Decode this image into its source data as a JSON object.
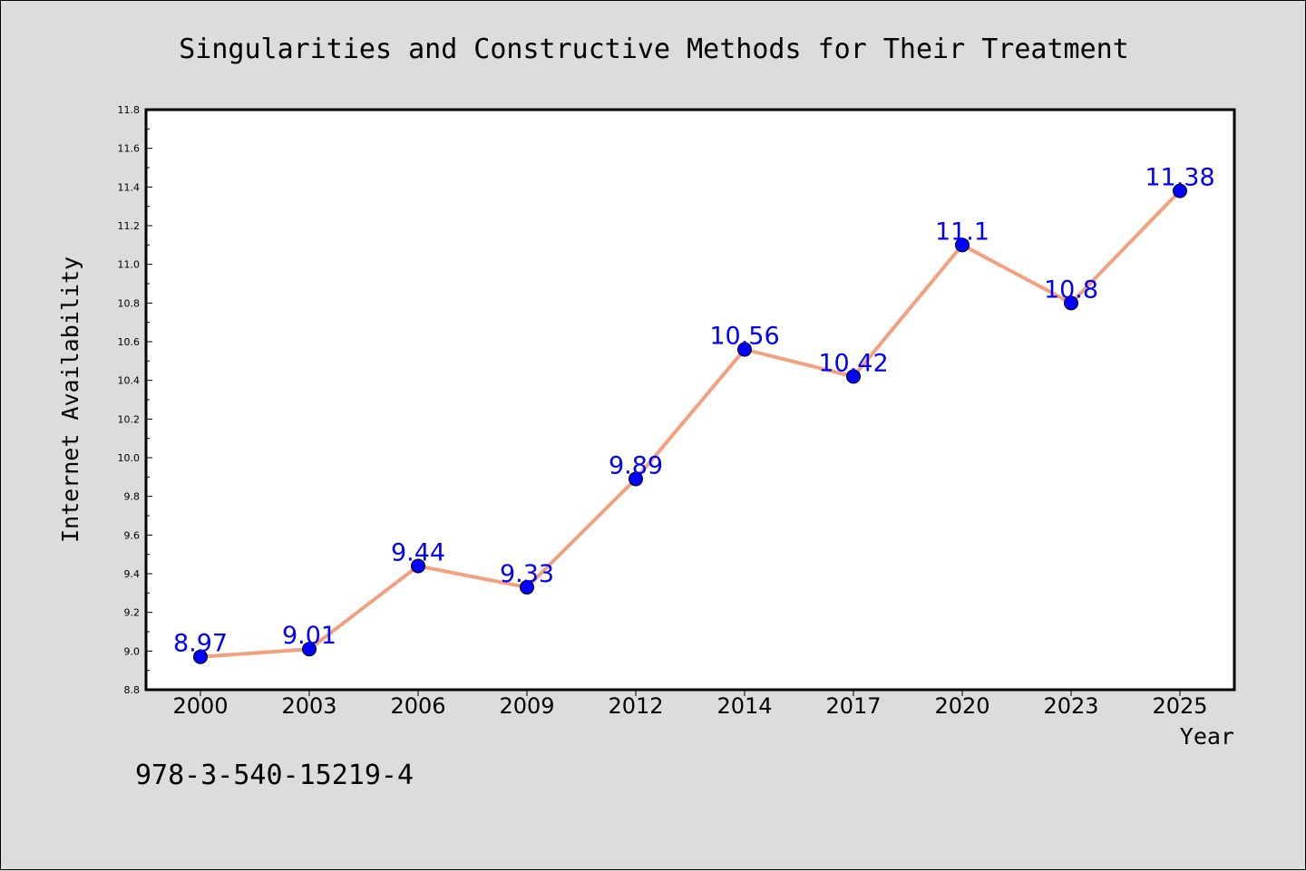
{
  "chart_data": {
    "type": "line",
    "title": "Singularities and Constructive Methods for Their Treatment",
    "xlabel": "Year",
    "ylabel": "Internet Availability",
    "categories": [
      "2000",
      "2003",
      "2006",
      "2009",
      "2012",
      "2014",
      "2017",
      "2020",
      "2023",
      "2025"
    ],
    "series": [
      {
        "values": [
          8.97,
          9.01,
          9.44,
          9.33,
          9.89,
          10.56,
          10.42,
          11.1,
          10.8,
          11.38
        ],
        "data_labels": [
          "8.97",
          "9.01",
          "9.44",
          "9.33",
          "9.89",
          "10.56",
          "10.42",
          "11.1",
          "10.8",
          "11.38"
        ]
      }
    ],
    "ylim": [
      8.8,
      11.8
    ],
    "yticks": [
      "8.8",
      "9.0",
      "9.2",
      "9.4",
      "9.6",
      "9.8",
      "10.0",
      "10.2",
      "10.4",
      "10.6",
      "10.8",
      "11.0",
      "11.2",
      "11.4",
      "11.6",
      "11.8"
    ],
    "grid": false,
    "legend": "none",
    "colors": {
      "line": "#f4a07f",
      "marker": "#0000ff",
      "data_label": "#0000ff",
      "background": "#dcdcdc",
      "plot_background": "#ffffff"
    }
  },
  "annotation": "978-3-540-15219-4"
}
